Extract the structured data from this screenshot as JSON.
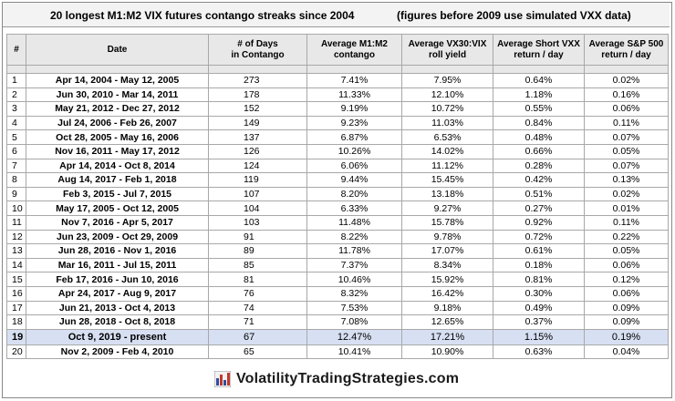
{
  "title": "20 longest M1:M2 VIX futures contango streaks since 2004",
  "note": "(figures before 2009 use simulated VXX data)",
  "columns": {
    "rank": "#",
    "date": "Date",
    "days_l1": "# of Days",
    "days_l2": "in Contango",
    "contango_l1": "Average M1:M2",
    "contango_l2": "contango",
    "roll_l1": "Average VX30:VIX",
    "roll_l2": "roll yield",
    "vxx_l1": "Average Short VXX",
    "vxx_l2": "return / day",
    "sp_l1": "Average S&P 500",
    "sp_l2": "return / day"
  },
  "rows": [
    {
      "rank": "1",
      "date": "Apr 14, 2004  -  May 12, 2005",
      "days": "273",
      "contango": "7.41%",
      "roll": "7.95%",
      "vxx": "0.64%",
      "sp": "0.02%"
    },
    {
      "rank": "2",
      "date": "Jun 30, 2010  -  Mar 14, 2011",
      "days": "178",
      "contango": "11.33%",
      "roll": "12.10%",
      "vxx": "1.18%",
      "sp": "0.16%"
    },
    {
      "rank": "3",
      "date": "May 21, 2012  -  Dec 27, 2012",
      "days": "152",
      "contango": "9.19%",
      "roll": "10.72%",
      "vxx": "0.55%",
      "sp": "0.06%"
    },
    {
      "rank": "4",
      "date": "Jul 24, 2006  -  Feb 26, 2007",
      "days": "149",
      "contango": "9.23%",
      "roll": "11.03%",
      "vxx": "0.84%",
      "sp": "0.11%"
    },
    {
      "rank": "5",
      "date": "Oct 28, 2005  -  May 16, 2006",
      "days": "137",
      "contango": "6.87%",
      "roll": "6.53%",
      "vxx": "0.48%",
      "sp": "0.07%"
    },
    {
      "rank": "6",
      "date": "Nov 16, 2011  -  May 17, 2012",
      "days": "126",
      "contango": "10.26%",
      "roll": "14.02%",
      "vxx": "0.66%",
      "sp": "0.05%"
    },
    {
      "rank": "7",
      "date": "Apr 14, 2014  -  Oct 8, 2014",
      "days": "124",
      "contango": "6.06%",
      "roll": "11.12%",
      "vxx": "0.28%",
      "sp": "0.07%"
    },
    {
      "rank": "8",
      "date": "Aug 14, 2017  -  Feb 1, 2018",
      "days": "119",
      "contango": "9.44%",
      "roll": "15.45%",
      "vxx": "0.42%",
      "sp": "0.13%"
    },
    {
      "rank": "9",
      "date": "Feb 3, 2015  -  Jul 7, 2015",
      "days": "107",
      "contango": "8.20%",
      "roll": "13.18%",
      "vxx": "0.51%",
      "sp": "0.02%"
    },
    {
      "rank": "10",
      "date": "May 17, 2005  -  Oct 12, 2005",
      "days": "104",
      "contango": "6.33%",
      "roll": "9.27%",
      "vxx": "0.27%",
      "sp": "0.01%"
    },
    {
      "rank": "11",
      "date": "Nov 7, 2016  -  Apr 5, 2017",
      "days": "103",
      "contango": "11.48%",
      "roll": "15.78%",
      "vxx": "0.92%",
      "sp": "0.11%"
    },
    {
      "rank": "12",
      "date": "Jun 23, 2009  -  Oct 29, 2009",
      "days": "91",
      "contango": "8.22%",
      "roll": "9.78%",
      "vxx": "0.72%",
      "sp": "0.22%"
    },
    {
      "rank": "13",
      "date": "Jun 28, 2016  -  Nov 1, 2016",
      "days": "89",
      "contango": "11.78%",
      "roll": "17.07%",
      "vxx": "0.61%",
      "sp": "0.05%"
    },
    {
      "rank": "14",
      "date": "Mar 16, 2011  -  Jul 15, 2011",
      "days": "85",
      "contango": "7.37%",
      "roll": "8.34%",
      "vxx": "0.18%",
      "sp": "0.06%"
    },
    {
      "rank": "15",
      "date": "Feb 17, 2016  -  Jun 10, 2016",
      "days": "81",
      "contango": "10.46%",
      "roll": "15.92%",
      "vxx": "0.81%",
      "sp": "0.12%"
    },
    {
      "rank": "16",
      "date": "Apr 24, 2017  -  Aug 9, 2017",
      "days": "76",
      "contango": "8.32%",
      "roll": "16.42%",
      "vxx": "0.30%",
      "sp": "0.06%"
    },
    {
      "rank": "17",
      "date": "Jun 21, 2013  -  Oct 4, 2013",
      "days": "74",
      "contango": "7.53%",
      "roll": "9.18%",
      "vxx": "0.49%",
      "sp": "0.09%"
    },
    {
      "rank": "18",
      "date": "Jun 28, 2018  -  Oct 8, 2018",
      "days": "71",
      "contango": "7.08%",
      "roll": "12.65%",
      "vxx": "0.37%",
      "sp": "0.09%"
    },
    {
      "rank": "19",
      "date": "Oct 9, 2019  -   present",
      "days": "67",
      "contango": "12.47%",
      "roll": "17.21%",
      "vxx": "1.15%",
      "sp": "0.19%",
      "highlight": true
    },
    {
      "rank": "20",
      "date": "Nov 2, 2009  -  Feb 4, 2010",
      "days": "65",
      "contango": "10.41%",
      "roll": "10.90%",
      "vxx": "0.63%",
      "sp": "0.04%"
    }
  ],
  "footer": {
    "brand": "VolatilityTradingStrategies.com",
    "icon": "bar-chart-icon",
    "colors": {
      "bars": [
        "#2f4f9f",
        "#c0392b",
        "#2f4f9f",
        "#c0392b"
      ],
      "highlight": "#d7e0f2"
    }
  }
}
